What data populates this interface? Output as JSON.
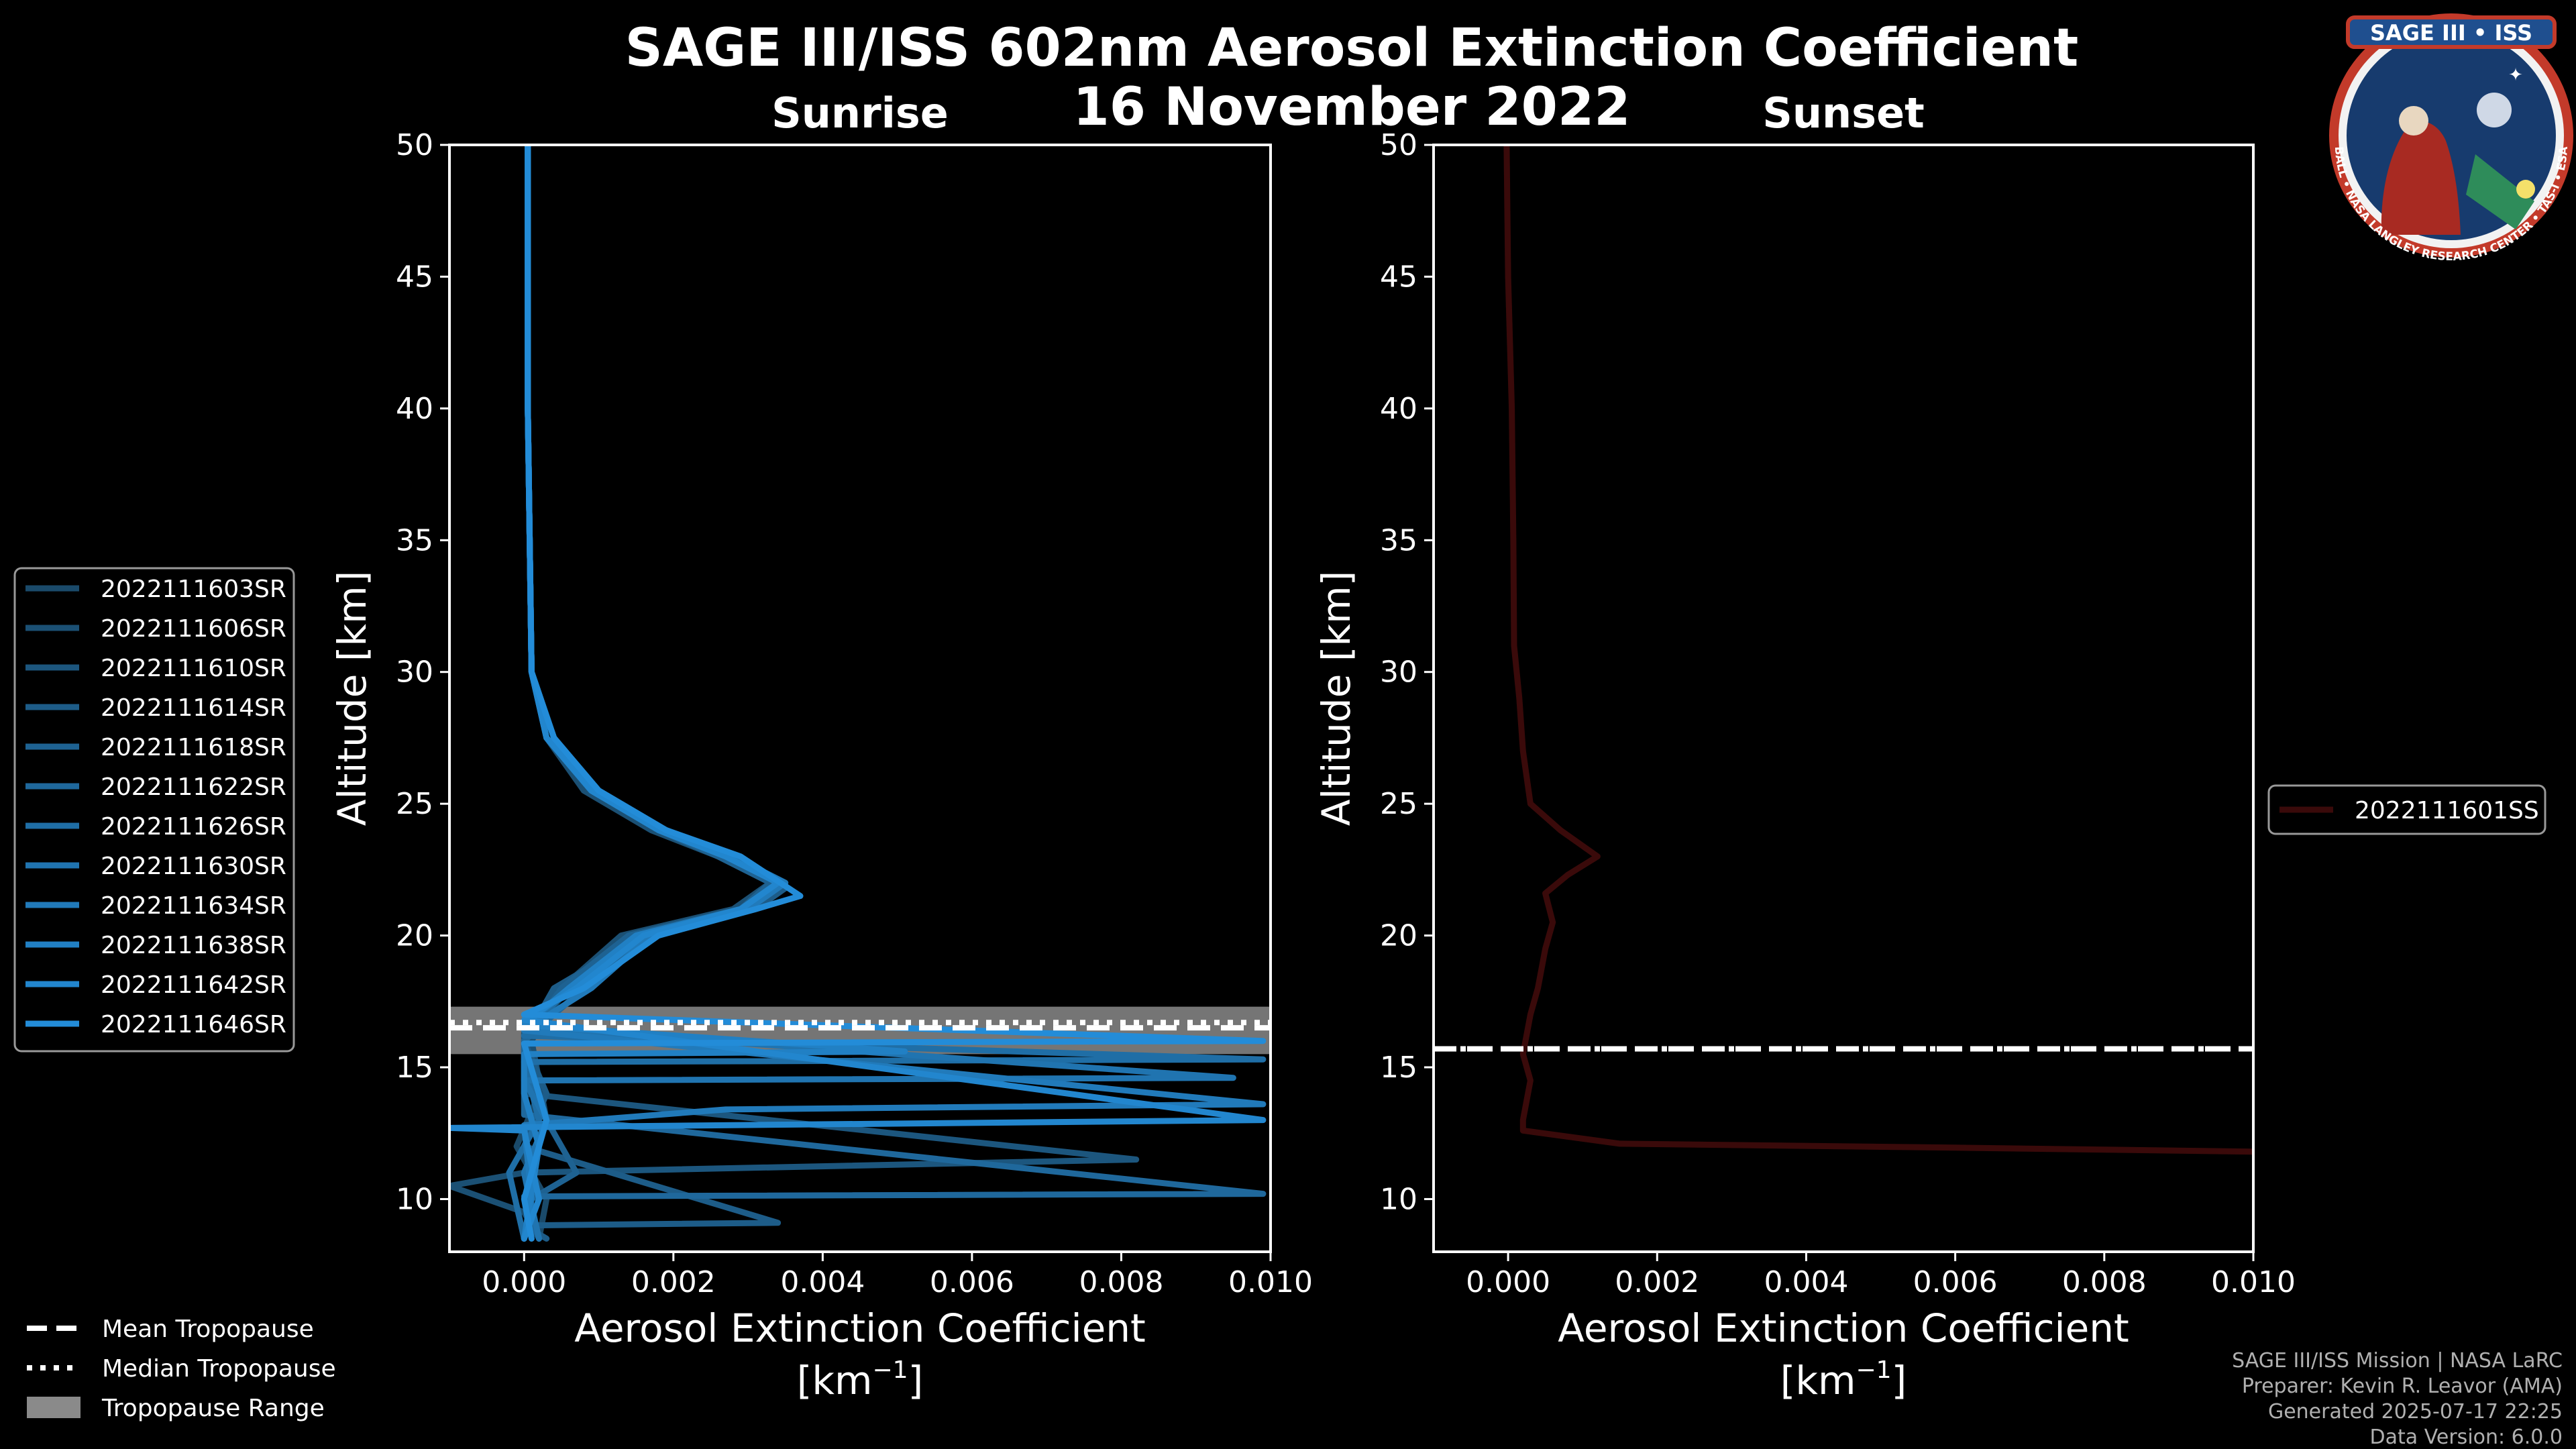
{
  "title_line1": "SAGE III/ISS 602nm Aerosol Extinction Coefficient",
  "title_line2": "16 November 2022",
  "logo_text": "SAGE III • ISS",
  "logo_ring_text": "BALL • NASA LANGLEY RESEARCH CENTER • TAS-I • ESA",
  "credits": [
    "SAGE III/ISS Mission | NASA LaRC",
    "Preparer: Kevin R. Leavor (AMA)",
    "Generated 2025-07-17 22:25",
    "Data Version: 6.0.0"
  ],
  "tropopause_legend": [
    {
      "label": "Mean Tropopause",
      "style": "dashed"
    },
    {
      "label": "Median Tropopause",
      "style": "dotted"
    },
    {
      "label": "Tropopause Range",
      "style": "band"
    }
  ],
  "chart_data": [
    {
      "type": "line",
      "panel": "sunrise",
      "title": "Sunrise",
      "xlabel": "Aerosol Extinction Coefficient",
      "xunit_base": "[km",
      "xunit_exp": "−1",
      "xunit_end": "]",
      "ylabel": "Altitude [km]",
      "xlim": [
        -0.001,
        0.01
      ],
      "ylim": [
        8,
        50
      ],
      "xticks": [
        0.0,
        0.002,
        0.004,
        0.006,
        0.008,
        0.01
      ],
      "xtick_labels": [
        "0.000",
        "0.002",
        "0.004",
        "0.006",
        "0.008",
        "0.010"
      ],
      "yticks": [
        10,
        15,
        20,
        25,
        30,
        35,
        40,
        45,
        50
      ],
      "tropopause": {
        "mean": 16.5,
        "median": 16.7,
        "range": [
          15.5,
          17.3
        ]
      },
      "series_colors": [
        "#1a4a6a",
        "#1b5074",
        "#1c567e",
        "#1d5c88",
        "#1e6292",
        "#1f689c",
        "#1f6ea6",
        "#2074b0",
        "#217aba",
        "#2180c4",
        "#2286ce",
        "#238cd8"
      ],
      "series": [
        {
          "name": "2022111603SR",
          "profile": [
            [
              5e-05,
              50
            ],
            [
              5e-05,
              40
            ],
            [
              0.0001,
              30
            ],
            [
              0.0003,
              27.5
            ],
            [
              0.0009,
              25.5
            ],
            [
              0.0018,
              24
            ],
            [
              0.0027,
              23
            ],
            [
              0.0034,
              22
            ],
            [
              0.0029,
              21
            ],
            [
              0.0015,
              20
            ],
            [
              0.0006,
              18
            ],
            [
              0.0,
              16
            ],
            [
              0.0002,
              14
            ],
            [
              -0.0001,
              12
            ],
            [
              0.0003,
              10
            ],
            [
              0.0002,
              8.5
            ]
          ]
        },
        {
          "name": "2022111606SR",
          "profile": [
            [
              5e-05,
              50
            ],
            [
              5e-05,
              40
            ],
            [
              0.0001,
              30
            ],
            [
              0.0003,
              27.5
            ],
            [
              0.0008,
              25.5
            ],
            [
              0.0017,
              24
            ],
            [
              0.0026,
              23
            ],
            [
              0.0033,
              22
            ],
            [
              0.0028,
              21
            ],
            [
              0.0013,
              20
            ],
            [
              0.0005,
              18
            ],
            [
              0.0001,
              16
            ],
            [
              0.0003,
              13
            ],
            [
              0.0,
              11
            ],
            [
              -0.001,
              10.5
            ],
            [
              0.0,
              9.5
            ],
            [
              0.0002,
              8.5
            ]
          ]
        },
        {
          "name": "2022111610SR",
          "profile": [
            [
              5e-05,
              50
            ],
            [
              5e-05,
              40
            ],
            [
              0.0001,
              30
            ],
            [
              0.0004,
              27.5
            ],
            [
              0.001,
              25.5
            ],
            [
              0.0019,
              24
            ],
            [
              0.0028,
              23
            ],
            [
              0.0035,
              22
            ],
            [
              0.003,
              21
            ],
            [
              0.0016,
              20
            ],
            [
              0.0006,
              18
            ],
            [
              0.0,
              16.3
            ],
            [
              0.0,
              14
            ],
            [
              0.0082,
              11.5
            ],
            [
              0.0,
              11
            ],
            [
              0.0001,
              9.6
            ],
            [
              0.0,
              8.5
            ]
          ]
        },
        {
          "name": "2022111614SR",
          "profile": [
            [
              5e-05,
              50
            ],
            [
              5e-05,
              40
            ],
            [
              0.0001,
              30
            ],
            [
              0.0003,
              27.5
            ],
            [
              0.0009,
              25.5
            ],
            [
              0.0018,
              24
            ],
            [
              0.0027,
              23
            ],
            [
              0.0035,
              21.8
            ],
            [
              0.0031,
              21
            ],
            [
              0.0016,
              20
            ],
            [
              0.0004,
              18
            ],
            [
              0.0,
              16
            ],
            [
              0.0003,
              14
            ],
            [
              0.0,
              12
            ],
            [
              0.0034,
              9.1
            ],
            [
              0.0,
              9.0
            ],
            [
              0.0003,
              8.5
            ]
          ]
        },
        {
          "name": "2022111618SR",
          "profile": [
            [
              5e-05,
              50
            ],
            [
              5e-05,
              40
            ],
            [
              0.0001,
              30
            ],
            [
              0.0003,
              27.5
            ],
            [
              0.0009,
              25.5
            ],
            [
              0.0018,
              24
            ],
            [
              0.0026,
              23
            ],
            [
              0.0033,
              22
            ],
            [
              0.0029,
              21
            ],
            [
              0.0014,
              20
            ],
            [
              0.0005,
              18
            ],
            [
              0.0,
              16
            ],
            [
              0.0002,
              13.5
            ],
            [
              0.0007,
              11
            ],
            [
              0.0001,
              10
            ],
            [
              0.0,
              8.5
            ]
          ]
        },
        {
          "name": "2022111622SR",
          "profile": [
            [
              5e-05,
              50
            ],
            [
              5e-05,
              40
            ],
            [
              0.0001,
              30
            ],
            [
              0.0004,
              27.5
            ],
            [
              0.0009,
              25.5
            ],
            [
              0.0019,
              24
            ],
            [
              0.0028,
              23
            ],
            [
              0.0034,
              22
            ],
            [
              0.003,
              21
            ],
            [
              0.0016,
              20
            ],
            [
              0.0008,
              18
            ],
            [
              0.0,
              16
            ],
            [
              0.0,
              13.2
            ],
            [
              0.0099,
              10.2
            ],
            [
              0.0,
              10.1
            ],
            [
              0.0002,
              8.5
            ]
          ]
        },
        {
          "name": "2022111626SR",
          "profile": [
            [
              5e-05,
              50
            ],
            [
              5e-05,
              40
            ],
            [
              0.0001,
              30
            ],
            [
              0.0003,
              27.5
            ],
            [
              0.0009,
              25.5
            ],
            [
              0.0018,
              24
            ],
            [
              0.0027,
              23
            ],
            [
              0.0034,
              22
            ],
            [
              0.0029,
              21
            ],
            [
              0.0015,
              20
            ],
            [
              0.0006,
              18
            ],
            [
              0.0,
              16.2
            ],
            [
              0.0099,
              15.3
            ],
            [
              0.0,
              15.2
            ],
            [
              0.0002,
              13
            ],
            [
              -0.0002,
              11
            ],
            [
              0.0,
              8.5
            ]
          ]
        },
        {
          "name": "2022111630SR",
          "profile": [
            [
              5e-05,
              50
            ],
            [
              5e-05,
              40
            ],
            [
              0.0001,
              30
            ],
            [
              0.0003,
              27.5
            ],
            [
              0.0009,
              25.5
            ],
            [
              0.0018,
              24
            ],
            [
              0.0027,
              23
            ],
            [
              0.0034,
              22
            ],
            [
              0.0029,
              21
            ],
            [
              0.0015,
              20
            ],
            [
              0.0006,
              18
            ],
            [
              0.0,
              16.5
            ],
            [
              0.0095,
              14.6
            ],
            [
              0.0,
              14.5
            ],
            [
              0.0003,
              13
            ],
            [
              0.0,
              11
            ],
            [
              0.0002,
              8.5
            ]
          ]
        },
        {
          "name": "2022111634SR",
          "profile": [
            [
              5e-05,
              50
            ],
            [
              5e-05,
              40
            ],
            [
              0.0001,
              30
            ],
            [
              0.0004,
              27.5
            ],
            [
              0.001,
              25.5
            ],
            [
              0.0019,
              24
            ],
            [
              0.0028,
              23
            ],
            [
              0.0035,
              22
            ],
            [
              0.003,
              21
            ],
            [
              0.0017,
              20
            ],
            [
              0.0009,
              18
            ],
            [
              0.0,
              16.4
            ],
            [
              0.0099,
              13.6
            ],
            [
              0.0027,
              13.4
            ],
            [
              0.0,
              12.8
            ],
            [
              0.0001,
              10
            ],
            [
              0.0,
              8.5
            ]
          ]
        },
        {
          "name": "2022111638SR",
          "profile": [
            [
              5e-05,
              50
            ],
            [
              5e-05,
              40
            ],
            [
              0.0001,
              30
            ],
            [
              0.0003,
              27.5
            ],
            [
              0.0009,
              25.5
            ],
            [
              0.0018,
              24
            ],
            [
              0.0027,
              23
            ],
            [
              0.0034,
              22
            ],
            [
              0.0029,
              21
            ],
            [
              0.0015,
              20
            ],
            [
              0.0006,
              18
            ],
            [
              0.0,
              16.6
            ],
            [
              0.0051,
              15.6
            ],
            [
              0.0,
              15.5
            ],
            [
              0.0,
              14
            ],
            [
              0.0002,
              12
            ],
            [
              0.0,
              8.5
            ]
          ]
        },
        {
          "name": "2022111642SR",
          "profile": [
            [
              5e-05,
              50
            ],
            [
              5e-05,
              40
            ],
            [
              0.0001,
              30
            ],
            [
              0.0003,
              27.5
            ],
            [
              0.0009,
              25.5
            ],
            [
              0.0018,
              24
            ],
            [
              0.0027,
              23
            ],
            [
              0.0034,
              22
            ],
            [
              0.0029,
              21
            ],
            [
              0.0016,
              20
            ],
            [
              0.0007,
              18
            ],
            [
              0.0,
              16.8
            ],
            [
              0.0099,
              13.0
            ],
            [
              -0.001,
              12.7
            ],
            [
              0.0,
              12.6
            ],
            [
              0.0002,
              10
            ],
            [
              0.0,
              8.5
            ]
          ]
        },
        {
          "name": "2022111646SR",
          "profile": [
            [
              5e-05,
              50
            ],
            [
              5e-05,
              40
            ],
            [
              0.0001,
              30
            ],
            [
              0.0004,
              27.5
            ],
            [
              0.001,
              25.5
            ],
            [
              0.0019,
              24
            ],
            [
              0.0029,
              23
            ],
            [
              0.0037,
              21.5
            ],
            [
              0.0031,
              21
            ],
            [
              0.0018,
              20
            ],
            [
              0.0008,
              18
            ],
            [
              0.0,
              17
            ],
            [
              0.0099,
              16.0
            ],
            [
              0.0,
              15.9
            ],
            [
              0.0003,
              13
            ],
            [
              0.0,
              10
            ],
            [
              0.0001,
              8.5
            ]
          ]
        }
      ]
    },
    {
      "type": "line",
      "panel": "sunset",
      "title": "Sunset",
      "xlabel": "Aerosol Extinction Coefficient",
      "xunit_base": "[km",
      "xunit_exp": "−1",
      "xunit_end": "]",
      "ylabel": "Altitude [km]",
      "xlim": [
        -0.001,
        0.01
      ],
      "ylim": [
        8,
        50
      ],
      "xticks": [
        0.0,
        0.002,
        0.004,
        0.006,
        0.008,
        0.01
      ],
      "xtick_labels": [
        "0.000",
        "0.002",
        "0.004",
        "0.006",
        "0.008",
        "0.010"
      ],
      "yticks": [
        10,
        15,
        20,
        25,
        30,
        35,
        40,
        45,
        50
      ],
      "tropopause": {
        "mean": 15.7,
        "median": 15.7,
        "range": [
          15.7,
          15.7
        ]
      },
      "series_colors": [
        "#3a0a0a"
      ],
      "series": [
        {
          "name": "2022111601SS",
          "profile": [
            [
              -2e-05,
              50
            ],
            [
              0.0,
              45
            ],
            [
              5e-05,
              40
            ],
            [
              7e-05,
              35
            ],
            [
              8e-05,
              31
            ],
            [
              0.00015,
              29
            ],
            [
              0.0002,
              27
            ],
            [
              0.0003,
              25
            ],
            [
              0.0007,
              24
            ],
            [
              0.0012,
              23
            ],
            [
              0.0008,
              22.3
            ],
            [
              0.0005,
              21.6
            ],
            [
              0.0006,
              20.5
            ],
            [
              0.0005,
              19.5
            ],
            [
              0.0004,
              18
            ],
            [
              0.0003,
              17
            ],
            [
              0.0002,
              15.5
            ],
            [
              0.0003,
              14.5
            ],
            [
              0.0002,
              13
            ],
            [
              0.0002,
              12.6
            ],
            [
              0.0015,
              12.1
            ],
            [
              0.006,
              11.95
            ],
            [
              0.01,
              11.8
            ]
          ]
        }
      ]
    }
  ]
}
